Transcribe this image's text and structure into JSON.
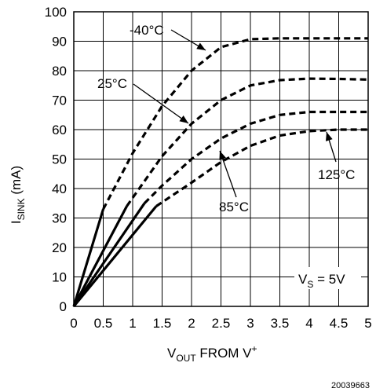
{
  "chart_data": {
    "type": "line",
    "title": "",
    "xlabel": {
      "main": "V",
      "sub": "OUT",
      "tail": " FROM V",
      "sup": "+"
    },
    "ylabel": {
      "main": "I",
      "sub": "SINK",
      "tail": " (mA)"
    },
    "xlim": [
      0,
      5
    ],
    "ylim": [
      0,
      100
    ],
    "xticks": [
      0,
      0.5,
      1,
      1.5,
      2,
      2.5,
      3,
      3.5,
      4,
      4.5,
      5
    ],
    "xtick_labels": [
      "0",
      "0.5",
      "1",
      "1.5",
      "2",
      "2.5",
      "3",
      "3.5",
      "4",
      "4.5",
      "5"
    ],
    "yticks": [
      0,
      10,
      20,
      30,
      40,
      50,
      60,
      70,
      80,
      90,
      100
    ],
    "ytick_labels": [
      "0",
      "10",
      "20",
      "30",
      "40",
      "50",
      "60",
      "70",
      "80",
      "90",
      "100"
    ],
    "grid": true,
    "series": [
      {
        "name": "-40°C",
        "solid": [
          [
            0,
            0
          ],
          [
            0.5,
            33
          ]
        ],
        "dashed": [
          [
            0.5,
            33
          ],
          [
            1,
            52
          ],
          [
            1.5,
            68
          ],
          [
            2,
            80
          ],
          [
            2.5,
            88
          ],
          [
            3,
            90.7
          ],
          [
            3.5,
            91
          ],
          [
            4,
            91
          ],
          [
            4.5,
            91
          ],
          [
            5,
            91
          ]
        ]
      },
      {
        "name": "25°C",
        "solid": [
          [
            0,
            0
          ],
          [
            0.9,
            34
          ]
        ],
        "dashed": [
          [
            0.9,
            34
          ],
          [
            1.5,
            51
          ],
          [
            2,
            62
          ],
          [
            2.5,
            70
          ],
          [
            3,
            75
          ],
          [
            3.5,
            76.8
          ],
          [
            4,
            77.3
          ],
          [
            4.5,
            77.2
          ],
          [
            5,
            77
          ]
        ]
      },
      {
        "name": "85°C",
        "solid": [
          [
            0,
            0
          ],
          [
            1.2,
            35
          ]
        ],
        "dashed": [
          [
            1.2,
            35
          ],
          [
            1.5,
            41
          ],
          [
            2,
            50
          ],
          [
            2.5,
            57
          ],
          [
            3,
            62
          ],
          [
            3.5,
            65
          ],
          [
            4,
            66
          ],
          [
            4.5,
            66
          ],
          [
            5,
            66
          ]
        ]
      },
      {
        "name": "125°C",
        "solid": [
          [
            0,
            0
          ],
          [
            1.4,
            34
          ]
        ],
        "dashed": [
          [
            1.4,
            34
          ],
          [
            2,
            42
          ],
          [
            2.5,
            49
          ],
          [
            3,
            54.5
          ],
          [
            3.5,
            58
          ],
          [
            4,
            59.5
          ],
          [
            4.5,
            60
          ],
          [
            5,
            60
          ]
        ]
      }
    ],
    "annotations": [
      {
        "text": "-40°C",
        "series": "-40°C"
      },
      {
        "text": "25°C",
        "series": "25°C"
      },
      {
        "text": "85°C",
        "series": "85°C"
      },
      {
        "text": "125°C",
        "series": "125°C"
      },
      {
        "text_main": "V",
        "text_sub": "S",
        "text_tail": " = 5V"
      }
    ],
    "figure_id": "20039663"
  }
}
